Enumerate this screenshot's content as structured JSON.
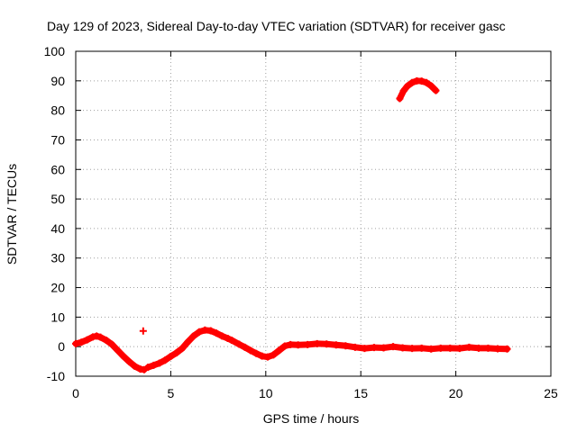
{
  "chart_data": {
    "type": "scatter",
    "title": "Day 129 of 2023, Sidereal Day-to-day VTEC variation (SDTVAR) for receiver gasc",
    "xlabel": "GPS time / hours",
    "ylabel": "SDTVAR / TECUs",
    "xlim": [
      0,
      25
    ],
    "ylim": [
      -10,
      100
    ],
    "xticks": [
      0,
      5,
      10,
      15,
      20,
      25
    ],
    "yticks": [
      -10,
      0,
      10,
      20,
      30,
      40,
      50,
      60,
      70,
      80,
      90,
      100
    ],
    "grid": true,
    "marker": "+",
    "series_color": "#ff0000",
    "series": [
      {
        "name": "SDTVAR",
        "points": [
          [
            0.0,
            1.0
          ],
          [
            0.3,
            1.5
          ],
          [
            0.6,
            2.3
          ],
          [
            0.9,
            3.3
          ],
          [
            1.1,
            3.6
          ],
          [
            1.3,
            3.2
          ],
          [
            1.6,
            2.2
          ],
          [
            1.9,
            0.8
          ],
          [
            2.2,
            -1.2
          ],
          [
            2.5,
            -3.2
          ],
          [
            2.8,
            -5.0
          ],
          [
            3.1,
            -6.6
          ],
          [
            3.4,
            -7.6
          ],
          [
            3.6,
            -7.8
          ],
          [
            3.55,
            5.3
          ],
          [
            3.8,
            -7.0
          ],
          [
            4.1,
            -6.3
          ],
          [
            4.4,
            -5.6
          ],
          [
            4.7,
            -4.6
          ],
          [
            5.0,
            -3.3
          ],
          [
            5.3,
            -2.1
          ],
          [
            5.6,
            -0.6
          ],
          [
            5.9,
            1.6
          ],
          [
            6.2,
            3.6
          ],
          [
            6.5,
            5.0
          ],
          [
            6.8,
            5.6
          ],
          [
            7.1,
            5.4
          ],
          [
            7.4,
            4.6
          ],
          [
            7.7,
            3.6
          ],
          [
            8.0,
            2.8
          ],
          [
            8.2,
            2.2
          ],
          [
            8.6,
            0.8
          ],
          [
            8.9,
            -0.2
          ],
          [
            9.2,
            -1.3
          ],
          [
            9.5,
            -2.3
          ],
          [
            9.8,
            -3.2
          ],
          [
            10.1,
            -3.5
          ],
          [
            10.4,
            -2.8
          ],
          [
            10.7,
            -1.3
          ],
          [
            11.0,
            0.2
          ],
          [
            11.3,
            0.7
          ],
          [
            11.7,
            0.6
          ],
          [
            12.2,
            0.7
          ],
          [
            12.7,
            1.0
          ],
          [
            13.2,
            0.9
          ],
          [
            13.7,
            0.6
          ],
          [
            14.2,
            0.3
          ],
          [
            14.7,
            -0.2
          ],
          [
            15.2,
            -0.6
          ],
          [
            15.7,
            -0.3
          ],
          [
            16.2,
            -0.4
          ],
          [
            16.7,
            0.0
          ],
          [
            17.2,
            -0.4
          ],
          [
            17.7,
            -0.6
          ],
          [
            18.2,
            -0.5
          ],
          [
            18.7,
            -0.8
          ],
          [
            19.2,
            -0.5
          ],
          [
            19.7,
            -0.5
          ],
          [
            20.2,
            -0.6
          ],
          [
            20.7,
            -0.2
          ],
          [
            21.2,
            -0.5
          ],
          [
            21.7,
            -0.5
          ],
          [
            22.2,
            -0.7
          ],
          [
            22.7,
            -0.8
          ],
          [
            17.05,
            84.0
          ],
          [
            17.25,
            86.6
          ],
          [
            17.45,
            88.2
          ],
          [
            17.7,
            89.4
          ],
          [
            17.95,
            90.0
          ],
          [
            18.2,
            89.9
          ],
          [
            18.45,
            89.4
          ],
          [
            18.7,
            88.3
          ],
          [
            18.95,
            86.7
          ]
        ]
      }
    ]
  }
}
